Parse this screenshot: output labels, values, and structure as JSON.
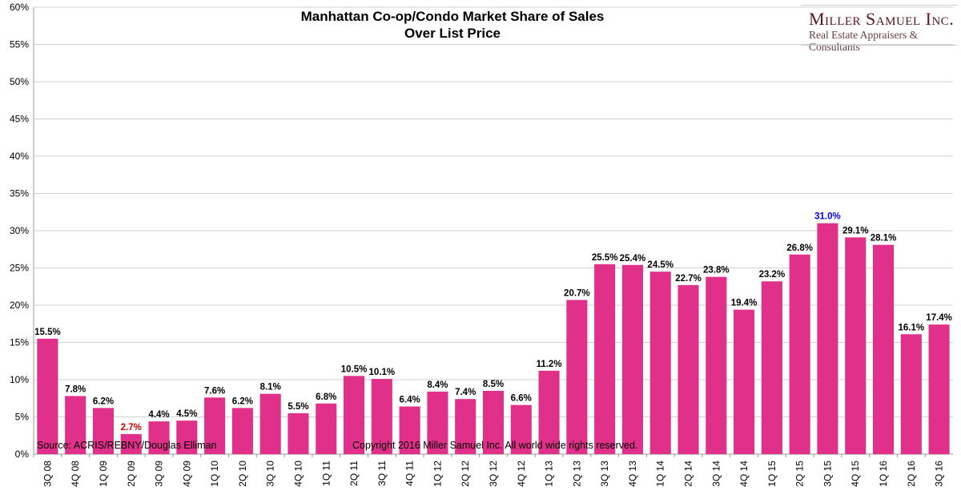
{
  "chart_data": {
    "type": "bar",
    "title": "Manhattan Co-op/Condo Market Share of Sales Over List Price",
    "title_lines": [
      "Manhattan Co-op/Condo Market Share of Sales",
      "Over List Price"
    ],
    "categories": [
      "3Q 08",
      "4Q 08",
      "1Q 09",
      "2Q 09",
      "3Q 09",
      "4Q 09",
      "1Q 10",
      "2Q 10",
      "3Q 10",
      "4Q 10",
      "1Q 11",
      "2Q 11",
      "3Q 11",
      "4Q 11",
      "1Q 12",
      "2Q 12",
      "3Q 12",
      "4Q 12",
      "1Q 13",
      "2Q 13",
      "3Q 13",
      "4Q 13",
      "1Q 14",
      "2Q 14",
      "3Q 14",
      "4Q 14",
      "1Q 15",
      "2Q 15",
      "3Q 15",
      "4Q 15",
      "1Q 16",
      "2Q 16",
      "3Q 16"
    ],
    "values": [
      15.5,
      7.8,
      6.2,
      2.7,
      4.4,
      4.5,
      7.6,
      6.2,
      8.1,
      5.5,
      6.8,
      10.5,
      10.1,
      6.4,
      8.4,
      7.4,
      8.5,
      6.6,
      11.2,
      20.7,
      25.5,
      25.4,
      24.5,
      22.7,
      23.8,
      19.4,
      23.2,
      26.8,
      31.0,
      29.1,
      28.1,
      16.1,
      17.4
    ],
    "data_labels": [
      "15.5%",
      "7.8%",
      "6.2%",
      "2.7%",
      "4.4%",
      "4.5%",
      "7.6%",
      "6.2%",
      "8.1%",
      "5.5%",
      "6.8%",
      "10.5%",
      "10.1%",
      "6.4%",
      "8.4%",
      "7.4%",
      "8.5%",
      "6.6%",
      "11.2%",
      "20.7%",
      "25.5%",
      "25.4%",
      "24.5%",
      "22.7%",
      "23.8%",
      "19.4%",
      "23.2%",
      "26.8%",
      "31.0%",
      "29.1%",
      "28.1%",
      "16.1%",
      "17.4%"
    ],
    "min_label_index": 3,
    "max_label_index": 28,
    "yticks": [
      "0%",
      "5%",
      "10%",
      "15%",
      "20%",
      "25%",
      "30%",
      "35%",
      "40%",
      "45%",
      "50%",
      "55%",
      "60%"
    ],
    "ylim": [
      0,
      60
    ],
    "xlabel": "",
    "ylabel": "",
    "grid": true,
    "legend": "none",
    "colors": {
      "bar": "#e0308a",
      "min_label": "#cc0000",
      "max_label": "#0000ee",
      "grid": "#d0d0d0"
    }
  },
  "source": "Source: ACRIS/REBNY/Douglas Elliman",
  "copyright": "Copyright 2016 Miller Samuel Inc.  All world wide rights reserved.",
  "logo": {
    "name": "Miller Samuel Inc.",
    "tagline": "Real Estate Appraisers & Consultants"
  }
}
